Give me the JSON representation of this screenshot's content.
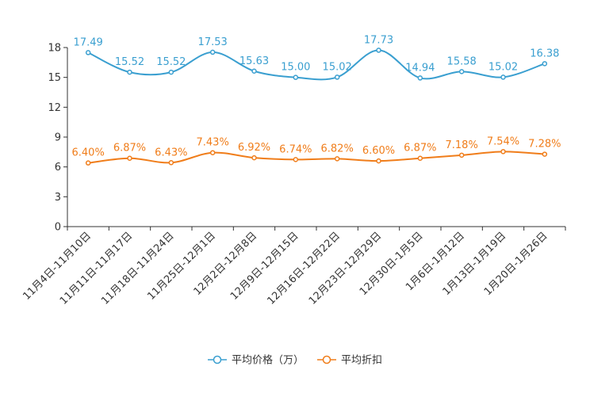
{
  "chart_data": {
    "type": "line",
    "title": "",
    "xlabel": "",
    "ylabel": "",
    "ylim": [
      0,
      18
    ],
    "yticks": [
      0,
      3,
      6,
      9,
      12,
      15,
      18
    ],
    "categories": [
      "11月4日-11月10日",
      "11月11日-11月17日",
      "11月18日-11月24日",
      "11月25日-12月1日",
      "12月2日-12月8日",
      "12月9日-12月15日",
      "12月16日-12月22日",
      "12月23日-12月29日",
      "12月30日-1月5日",
      "1月6日-1月12日",
      "1月13日-1月19日",
      "1月20日-1月26日"
    ],
    "series": [
      {
        "name": "平均价格（万）",
        "color": "#3a9fd0",
        "values": [
          17.49,
          15.52,
          15.52,
          17.53,
          15.63,
          15.0,
          15.02,
          17.73,
          14.94,
          15.58,
          15.02,
          16.38
        ],
        "labels": [
          "17.49",
          "15.52",
          "15.52",
          "17.53",
          "15.63",
          "15.00",
          "15.02",
          "17.73",
          "14.94",
          "15.58",
          "15.02",
          "16.38"
        ]
      },
      {
        "name": "平均折扣",
        "color": "#f07d1a",
        "values": [
          6.4,
          6.87,
          6.43,
          7.43,
          6.92,
          6.74,
          6.82,
          6.6,
          6.87,
          7.18,
          7.54,
          7.28
        ],
        "labels": [
          "6.40%",
          "6.87%",
          "6.43%",
          "7.43%",
          "6.92%",
          "6.74%",
          "6.82%",
          "6.60%",
          "6.87%",
          "7.18%",
          "7.54%",
          "7.28%"
        ]
      }
    ],
    "grid": false,
    "legend_position": "bottom-center"
  }
}
